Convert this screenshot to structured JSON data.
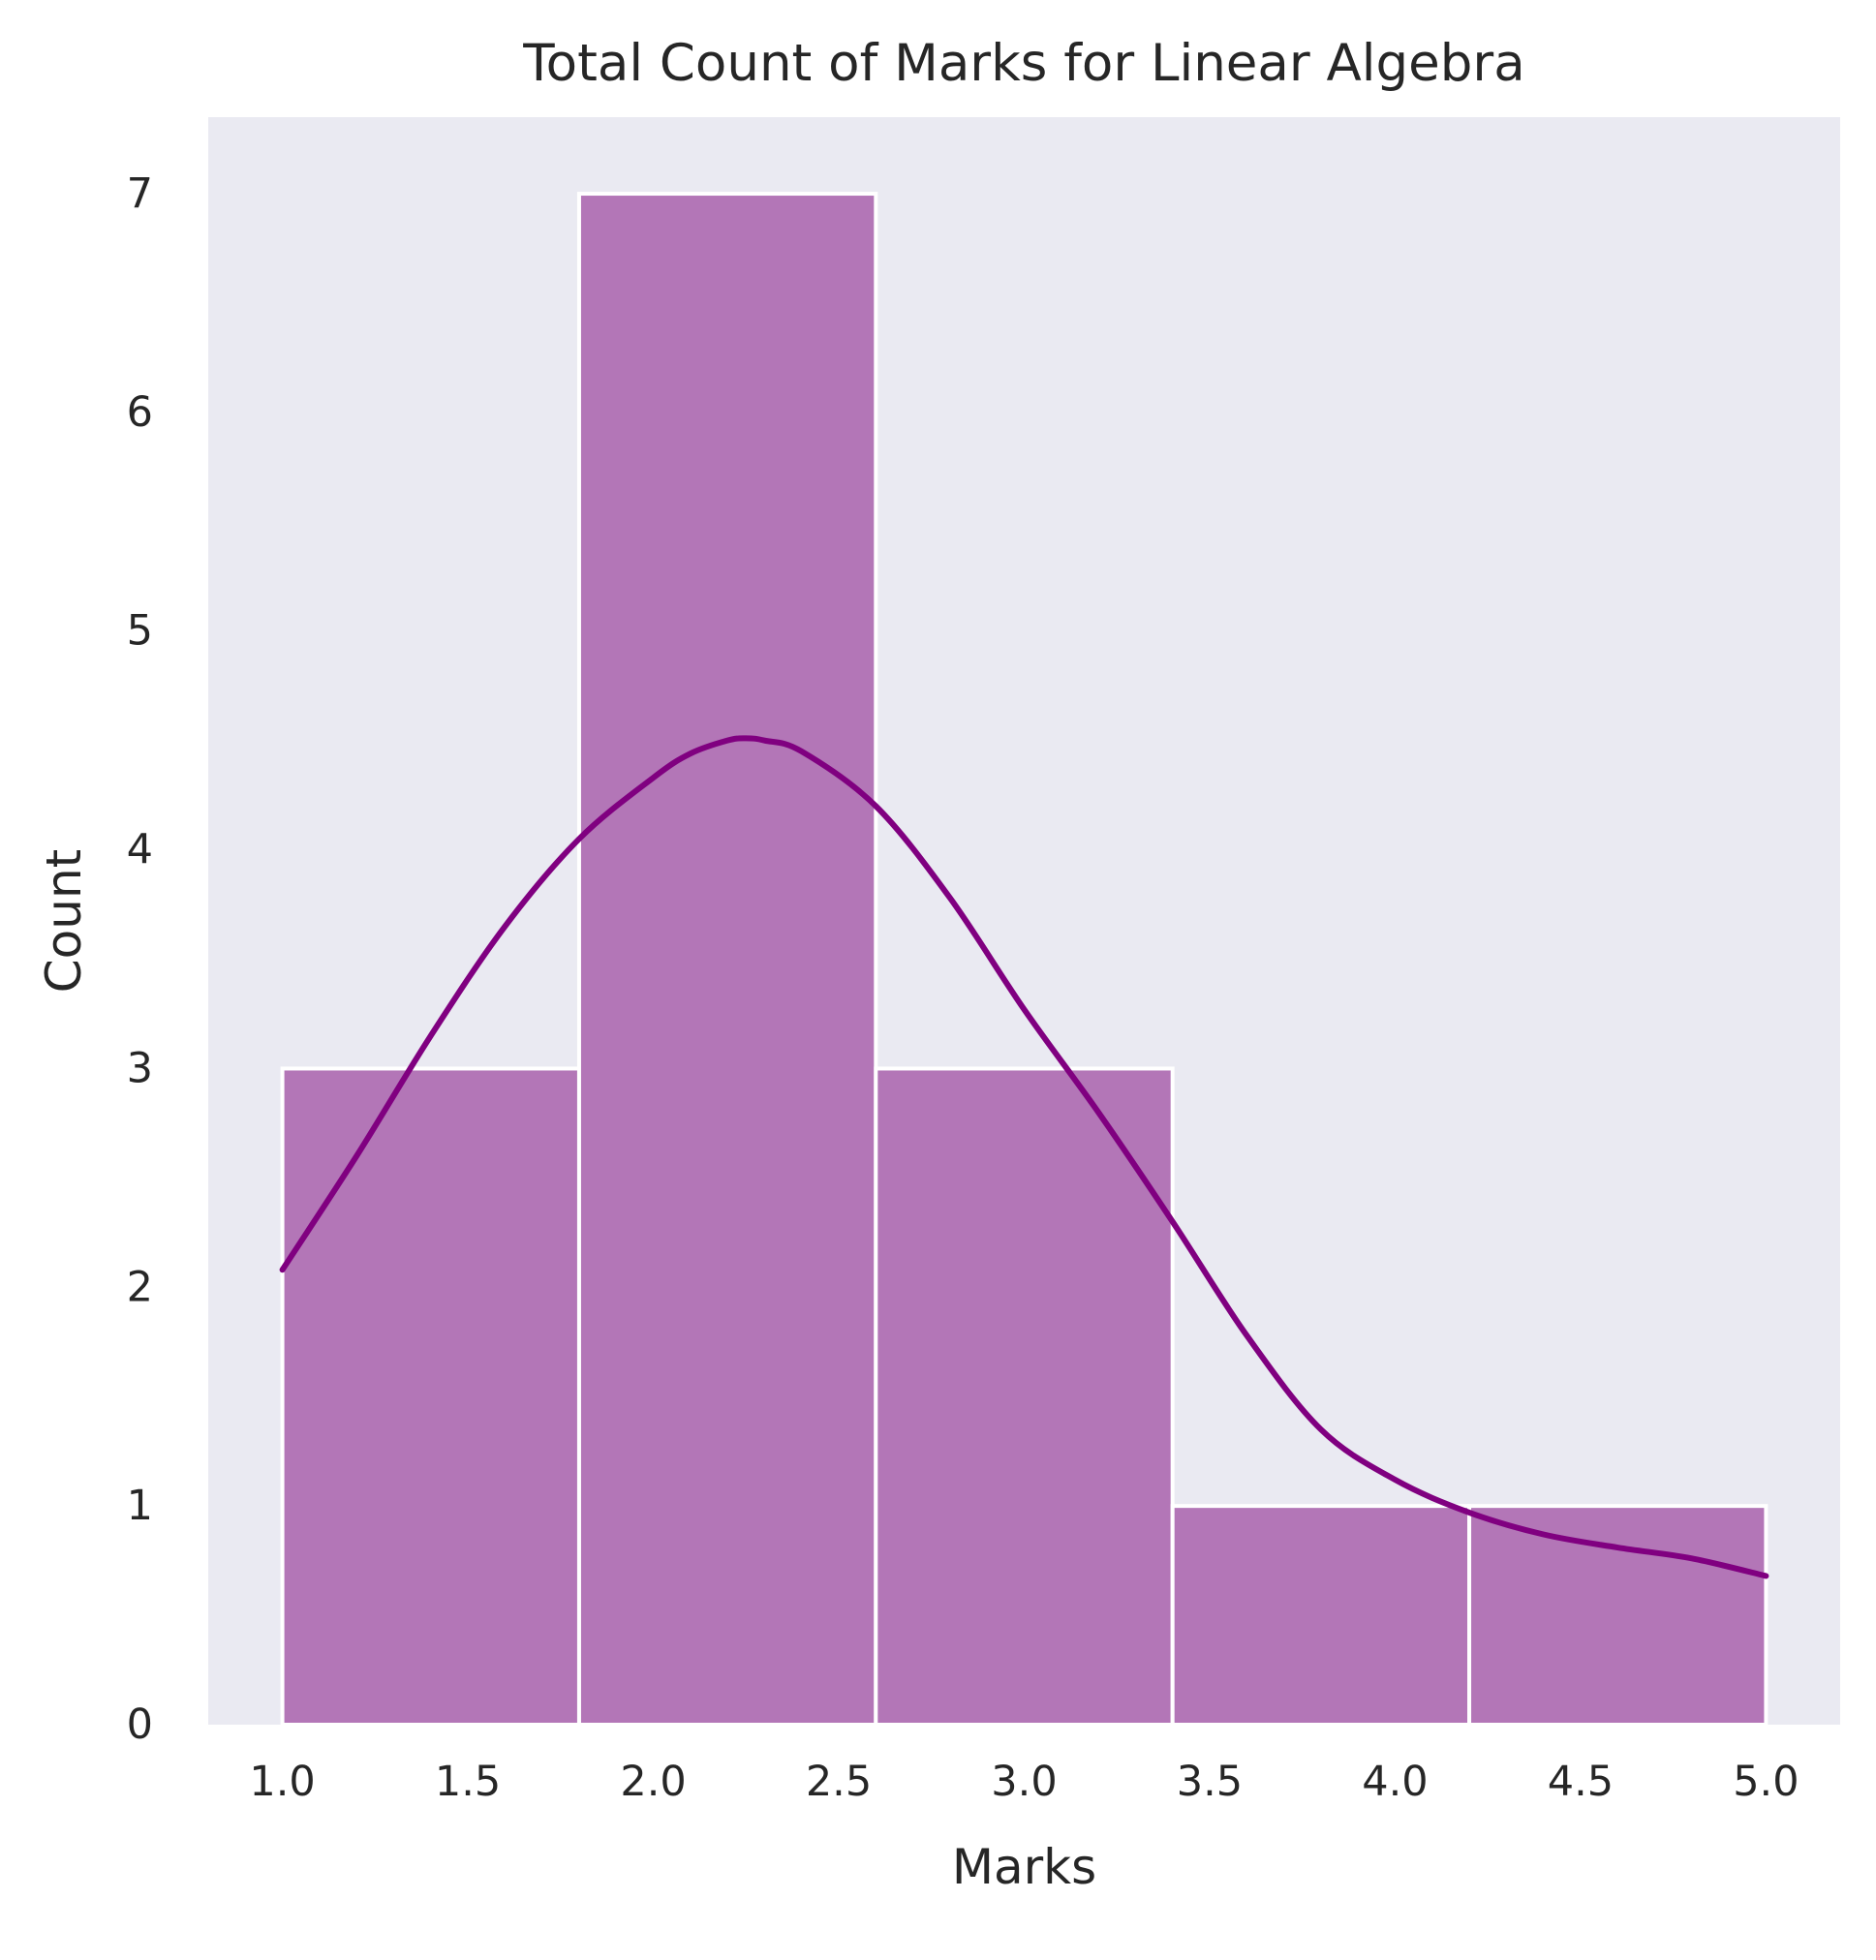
{
  "chart_data": {
    "type": "bar",
    "subtype": "histogram-with-kde",
    "title": "Total Count of Marks for Linear Algebra",
    "xlabel": "Marks",
    "ylabel": "Count",
    "bins": [
      {
        "start": 1.0,
        "end": 1.8,
        "count": 3
      },
      {
        "start": 1.8,
        "end": 2.6,
        "count": 7
      },
      {
        "start": 2.6,
        "end": 3.4,
        "count": 3
      },
      {
        "start": 3.4,
        "end": 4.2,
        "count": 1
      },
      {
        "start": 4.2,
        "end": 5.0,
        "count": 1
      }
    ],
    "kde": {
      "x": [
        1.0,
        1.2,
        1.4,
        1.6,
        1.8,
        2.0,
        2.1,
        2.2,
        2.25,
        2.3,
        2.4,
        2.6,
        2.8,
        3.0,
        3.2,
        3.4,
        3.6,
        3.8,
        4.0,
        4.2,
        4.4,
        4.6,
        4.8,
        5.0
      ],
      "y": [
        2.08,
        2.6,
        3.15,
        3.65,
        4.05,
        4.33,
        4.44,
        4.5,
        4.51,
        4.5,
        4.45,
        4.2,
        3.78,
        3.27,
        2.8,
        2.3,
        1.78,
        1.35,
        1.12,
        0.97,
        0.87,
        0.81,
        0.76,
        0.68
      ]
    },
    "xlim": [
      0.8,
      5.2
    ],
    "ylim": [
      0,
      7.35
    ],
    "xticks": [
      "1.0",
      "1.5",
      "2.0",
      "2.5",
      "3.0",
      "3.5",
      "4.0",
      "4.5",
      "5.0"
    ],
    "yticks": [
      "0",
      "1",
      "2",
      "3",
      "4",
      "5",
      "6",
      "7"
    ],
    "grid": false,
    "colors": {
      "plot_background": "#eaeaf2",
      "bar_fill": "#b376b7",
      "bar_edge": "#ffffff",
      "kde_line": "#800080"
    }
  }
}
